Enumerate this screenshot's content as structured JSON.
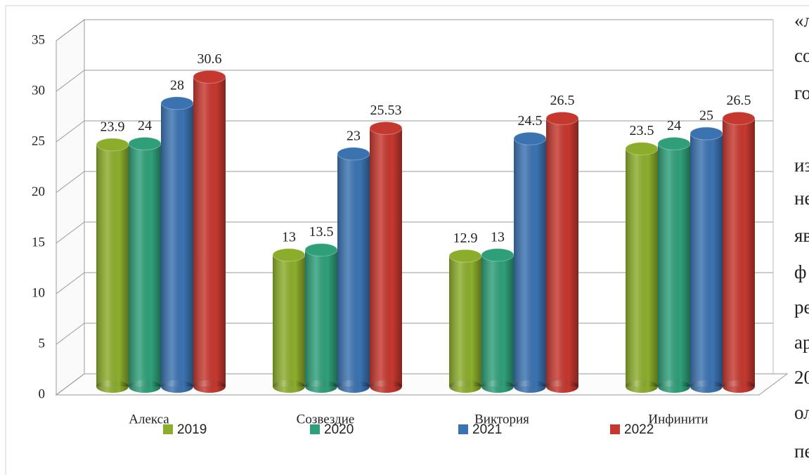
{
  "chart_data": {
    "type": "bar3d",
    "categories": [
      "Алекса",
      "Созвездие",
      "Виктория",
      "Инфинити"
    ],
    "series": [
      {
        "name": "2019",
        "color": "#8cad2c",
        "values": [
          23.9,
          13,
          12.9,
          23.5
        ]
      },
      {
        "name": "2020",
        "color": "#2f9f7a",
        "values": [
          24,
          13.5,
          13,
          24
        ]
      },
      {
        "name": "2021",
        "color": "#3b73b1",
        "values": [
          28,
          23,
          24.5,
          25
        ]
      },
      {
        "name": "2022",
        "color": "#c5382f",
        "values": [
          30.6,
          25.53,
          26.5,
          26.5
        ]
      }
    ],
    "ylim": [
      0,
      35
    ],
    "yticks": [
      0,
      5,
      10,
      15,
      20,
      25,
      30,
      35
    ],
    "grid": true,
    "legend": "bottom"
  },
  "side_text": [
    "«л",
    "со",
    "го",
    "из",
    "не",
    "яв",
    "ф",
    "ре",
    "ар",
    "20",
    "ол",
    "пе"
  ]
}
